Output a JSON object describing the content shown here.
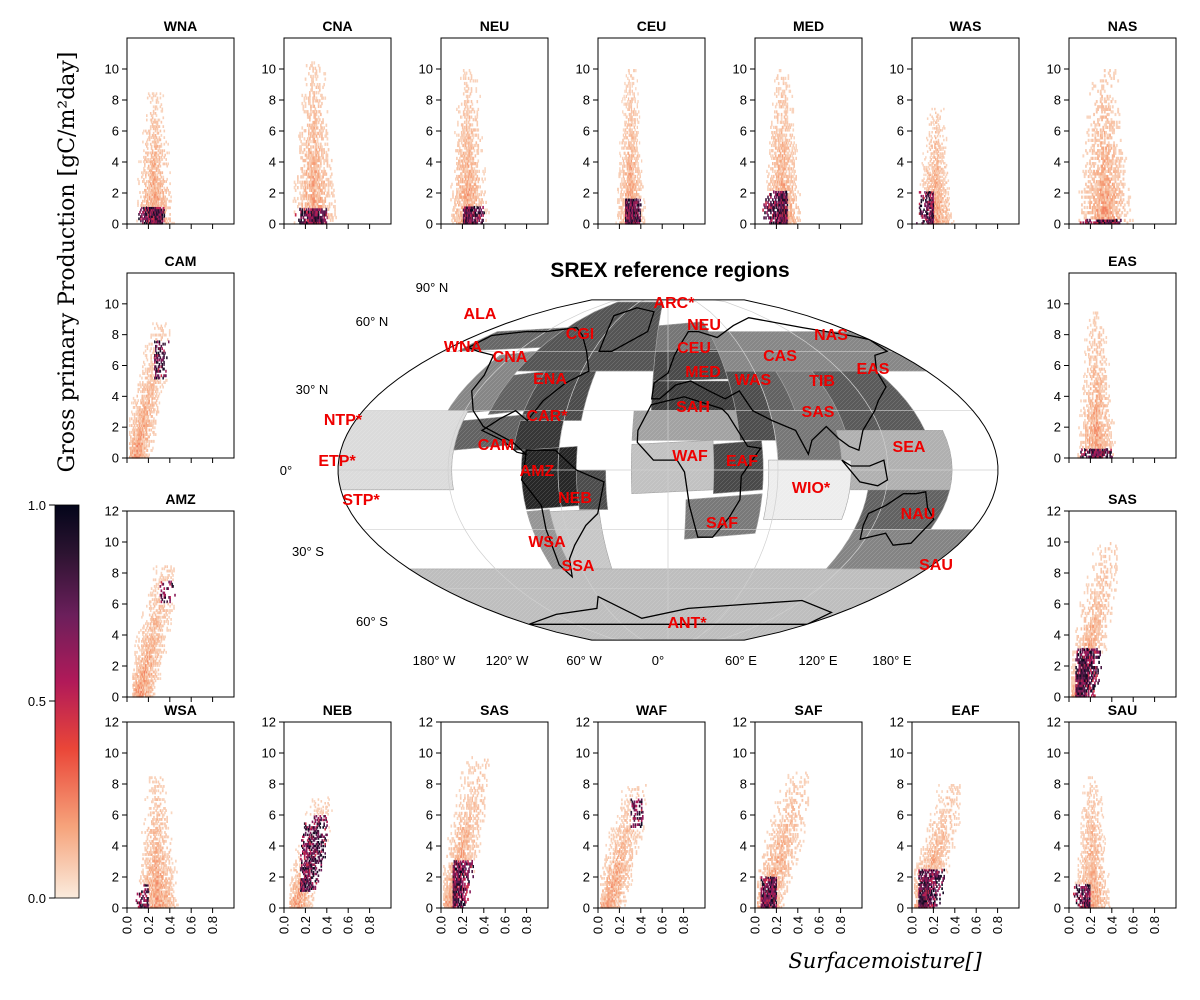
{
  "figure": {
    "ylabel": "Gross primary Production [gC/m²day]",
    "xlabel": "Surfacemoisture[]",
    "colorbar": {
      "ticks": [
        "0.0",
        "0.5",
        "1.0"
      ],
      "colors": [
        "#faebdd",
        "#f6a47c",
        "#ea4638",
        "#b11a59",
        "#6b1f5b",
        "#2b1330",
        "#03051a"
      ]
    }
  },
  "chart_data": [
    {
      "type": "heatmap",
      "title": "WNA",
      "ylim": [
        0,
        12
      ],
      "yticks": [
        0,
        2,
        4,
        6,
        8,
        10
      ],
      "xlim": [
        0,
        1
      ],
      "xticks": [
        0.0,
        0.2,
        0.4,
        0.6,
        0.8
      ],
      "xticklabels": [
        "0.0",
        "0.2",
        "0.4",
        "0.6",
        "0.8"
      ],
      "density": {
        "x_range": [
          0.05,
          0.45
        ],
        "y_range": [
          0,
          8.5
        ],
        "y_peak": 8.5,
        "core": [
          0.1,
          0.35,
          0,
          1
        ],
        "trend": "vertical"
      }
    },
    {
      "type": "heatmap",
      "title": "CNA",
      "ylim": [
        0,
        12
      ],
      "yticks": [
        0,
        2,
        4,
        6,
        8,
        10
      ],
      "xlim": [
        0,
        1
      ],
      "xticks": [
        0.0,
        0.2,
        0.4,
        0.6,
        0.8
      ],
      "xticklabels": [
        "0.0",
        "0.2",
        "0.4",
        "0.6",
        "0.8"
      ],
      "density": {
        "x_range": [
          0.05,
          0.5
        ],
        "y_range": [
          0,
          10.5
        ],
        "y_peak": 10.5,
        "core": [
          0.1,
          0.4,
          0,
          1
        ],
        "trend": "vertical"
      }
    },
    {
      "type": "heatmap",
      "title": "NEU",
      "ylim": [
        0,
        12
      ],
      "yticks": [
        0,
        2,
        4,
        6,
        8,
        10
      ],
      "xlim": [
        0,
        1
      ],
      "xticks": [
        0.0,
        0.2,
        0.4,
        0.6,
        0.8
      ],
      "xticklabels": [
        "0.0",
        "0.2",
        "0.4",
        "0.6",
        "0.8"
      ],
      "density": {
        "x_range": [
          0.05,
          0.45
        ],
        "y_range": [
          0,
          10
        ],
        "y_peak": 10,
        "core": [
          0.2,
          0.4,
          0,
          1
        ],
        "trend": "vertical"
      }
    },
    {
      "type": "heatmap",
      "title": "CEU",
      "ylim": [
        0,
        12
      ],
      "yticks": [
        0,
        2,
        4,
        6,
        8,
        10
      ],
      "xlim": [
        0,
        1
      ],
      "xticks": [
        0.0,
        0.2,
        0.4,
        0.6,
        0.8
      ],
      "xticklabels": [
        "0.0",
        "0.2",
        "0.4",
        "0.6",
        "0.8"
      ],
      "density": {
        "x_range": [
          0.15,
          0.45
        ],
        "y_range": [
          0,
          10
        ],
        "y_peak": 10,
        "core": [
          0.25,
          0.4,
          0,
          1.5
        ],
        "trend": "vertical"
      }
    },
    {
      "type": "heatmap",
      "title": "MED",
      "ylim": [
        0,
        12
      ],
      "yticks": [
        0,
        2,
        4,
        6,
        8,
        10
      ],
      "xlim": [
        0,
        1
      ],
      "xticks": [
        0.0,
        0.2,
        0.4,
        0.6,
        0.8
      ],
      "xticklabels": [
        "0.0",
        "0.2",
        "0.4",
        "0.6",
        "0.8"
      ],
      "density": {
        "x_range": [
          0.05,
          0.45
        ],
        "y_range": [
          0,
          10
        ],
        "y_peak": 10,
        "core": [
          0.05,
          0.3,
          0,
          2
        ],
        "trend": "vertical"
      }
    },
    {
      "type": "heatmap",
      "title": "WAS",
      "ylim": [
        0,
        12
      ],
      "yticks": [
        0,
        2,
        4,
        6,
        8,
        10
      ],
      "xlim": [
        0,
        1
      ],
      "xticks": [
        0.0,
        0.2,
        0.4,
        0.6,
        0.8
      ],
      "xticklabels": [
        "0.0",
        "0.2",
        "0.4",
        "0.6",
        "0.8"
      ],
      "density": {
        "x_range": [
          0.03,
          0.4
        ],
        "y_range": [
          0,
          7.5
        ],
        "y_peak": 7.5,
        "core": [
          0.03,
          0.2,
          0,
          2
        ],
        "trend": "vertical"
      }
    },
    {
      "type": "heatmap",
      "title": "NAS",
      "ylim": [
        0,
        12
      ],
      "yticks": [
        0,
        2,
        4,
        6,
        8,
        10
      ],
      "xlim": [
        0,
        1
      ],
      "xticks": [
        0.0,
        0.2,
        0.4,
        0.6,
        0.8
      ],
      "xticklabels": [
        "0.0",
        "0.2",
        "0.4",
        "0.6",
        "0.8"
      ],
      "density": {
        "x_range": [
          0.05,
          0.6
        ],
        "y_range": [
          0,
          10
        ],
        "y_peak": 10,
        "core": [
          0.1,
          0.5,
          0,
          0.3
        ],
        "trend": "vertical"
      }
    },
    {
      "type": "heatmap",
      "title": "CAM",
      "ylim": [
        0,
        12
      ],
      "yticks": [
        0,
        2,
        4,
        6,
        8,
        10
      ],
      "xlim": [
        0,
        1
      ],
      "xticks": [
        0.0,
        0.2,
        0.4,
        0.6,
        0.8
      ],
      "xticklabels": [
        "0.0",
        "0.2",
        "0.4",
        "0.6",
        "0.8"
      ],
      "density": {
        "x_range": [
          0.02,
          0.4
        ],
        "y_range": [
          0,
          8.8
        ],
        "y_peak": 8.8,
        "core": [
          0.25,
          0.4,
          5,
          7.5
        ],
        "trend": "diagonal"
      }
    },
    {
      "type": "heatmap",
      "title": "EAS",
      "ylim": [
        0,
        12
      ],
      "yticks": [
        0,
        2,
        4,
        6,
        8,
        10
      ],
      "xlim": [
        0,
        1
      ],
      "xticks": [
        0.0,
        0.2,
        0.4,
        0.6,
        0.8
      ],
      "xticklabels": [
        "0.0",
        "0.2",
        "0.4",
        "0.6",
        "0.8"
      ],
      "density": {
        "x_range": [
          0.05,
          0.45
        ],
        "y_range": [
          0,
          9.5
        ],
        "y_peak": 9.5,
        "core": [
          0.1,
          0.4,
          0,
          0.5
        ],
        "trend": "vertical"
      }
    },
    {
      "type": "heatmap",
      "title": "AMZ",
      "ylim": [
        0,
        12
      ],
      "yticks": [
        0,
        2,
        4,
        6,
        8,
        10,
        12
      ],
      "xlim": [
        0,
        1
      ],
      "xticks": [
        0.0,
        0.2,
        0.4,
        0.6,
        0.8
      ],
      "xticklabels": [
        "0.0",
        "0.2",
        "0.4",
        "0.6",
        "0.8"
      ],
      "density": {
        "x_range": [
          0.05,
          0.45
        ],
        "y_range": [
          0,
          8.5
        ],
        "y_peak": 8.5,
        "core": [
          0.3,
          0.45,
          6,
          7.5
        ],
        "trend": "diagonal"
      }
    },
    {
      "type": "heatmap",
      "title": "SAS",
      "ylim": [
        0,
        12
      ],
      "yticks": [
        0,
        2,
        4,
        6,
        8,
        10,
        12
      ],
      "xlim": [
        0,
        1
      ],
      "xticks": [
        0.0,
        0.2,
        0.4,
        0.6,
        0.8
      ],
      "xticklabels": [
        "0.0",
        "0.2",
        "0.4",
        "0.6",
        "0.8"
      ],
      "density": {
        "x_range": [
          0.02,
          0.45
        ],
        "y_range": [
          0,
          10
        ],
        "y_peak": 10,
        "core": [
          0.05,
          0.3,
          0,
          3
        ],
        "trend": "diagonal"
      }
    },
    {
      "type": "heatmap",
      "title": "WSA",
      "ylim": [
        0,
        12
      ],
      "yticks": [
        0,
        2,
        4,
        6,
        8,
        10,
        12
      ],
      "xlim": [
        0,
        1
      ],
      "xticks": [
        0.0,
        0.2,
        0.4,
        0.6,
        0.8
      ],
      "xticklabels": [
        "0.0",
        "0.2",
        "0.4",
        "0.6",
        "0.8"
      ],
      "density": {
        "x_range": [
          0.05,
          0.5
        ],
        "y_range": [
          0,
          8.5
        ],
        "y_peak": 8.5,
        "core": [
          0.05,
          0.2,
          0,
          1.5
        ],
        "trend": "vertical"
      }
    },
    {
      "type": "heatmap",
      "title": "NEB",
      "ylim": [
        0,
        12
      ],
      "yticks": [
        0,
        2,
        4,
        6,
        8,
        10,
        12
      ],
      "xlim": [
        0,
        1
      ],
      "xticks": [
        0.0,
        0.2,
        0.4,
        0.6,
        0.8
      ],
      "xticklabels": [
        "0.0",
        "0.2",
        "0.4",
        "0.6",
        "0.8"
      ],
      "density": {
        "x_range": [
          0.05,
          0.45
        ],
        "y_range": [
          0,
          7.2
        ],
        "y_peak": 7.2,
        "core": [
          0.15,
          0.4,
          1,
          6
        ],
        "trend": "diagonal"
      }
    },
    {
      "type": "heatmap",
      "title": "SAS",
      "ylim": [
        0,
        12
      ],
      "yticks": [
        0,
        2,
        4,
        6,
        8,
        10,
        12
      ],
      "xlim": [
        0,
        1
      ],
      "xticks": [
        0.0,
        0.2,
        0.4,
        0.6,
        0.8
      ],
      "xticklabels": [
        "0.0",
        "0.2",
        "0.4",
        "0.6",
        "0.8"
      ],
      "density": {
        "x_range": [
          0.02,
          0.45
        ],
        "y_range": [
          0,
          9.8
        ],
        "y_peak": 9.8,
        "core": [
          0.1,
          0.3,
          0,
          3
        ],
        "trend": "diagonal"
      }
    },
    {
      "type": "heatmap",
      "title": "WAF",
      "ylim": [
        0,
        12
      ],
      "yticks": [
        0,
        2,
        4,
        6,
        8,
        10,
        12
      ],
      "xlim": [
        0,
        1
      ],
      "xticks": [
        0.0,
        0.2,
        0.4,
        0.6,
        0.8
      ],
      "xticklabels": [
        "0.0",
        "0.2",
        "0.4",
        "0.6",
        "0.8"
      ],
      "density": {
        "x_range": [
          0.02,
          0.45
        ],
        "y_range": [
          0,
          8
        ],
        "y_peak": 8,
        "core": [
          0.3,
          0.42,
          5,
          7
        ],
        "trend": "diagonal"
      }
    },
    {
      "type": "heatmap",
      "title": "SAF",
      "ylim": [
        0,
        12
      ],
      "yticks": [
        0,
        2,
        4,
        6,
        8,
        10,
        12
      ],
      "xlim": [
        0,
        1
      ],
      "xticks": [
        0.0,
        0.2,
        0.4,
        0.6,
        0.8
      ],
      "xticklabels": [
        "0.0",
        "0.2",
        "0.4",
        "0.6",
        "0.8"
      ],
      "density": {
        "x_range": [
          0.02,
          0.5
        ],
        "y_range": [
          0,
          8.8
        ],
        "y_peak": 8.8,
        "core": [
          0.05,
          0.2,
          0,
          2
        ],
        "trend": "diagonal"
      }
    },
    {
      "type": "heatmap",
      "title": "EAF",
      "ylim": [
        0,
        12
      ],
      "yticks": [
        0,
        2,
        4,
        6,
        8,
        10,
        12
      ],
      "xlim": [
        0,
        1
      ],
      "xticks": [
        0.0,
        0.2,
        0.4,
        0.6,
        0.8
      ],
      "xticklabels": [
        "0.0",
        "0.2",
        "0.4",
        "0.6",
        "0.8"
      ],
      "density": {
        "x_range": [
          0.02,
          0.45
        ],
        "y_range": [
          0,
          8
        ],
        "y_peak": 8,
        "core": [
          0.05,
          0.3,
          0,
          2.5
        ],
        "trend": "diagonal"
      }
    },
    {
      "type": "heatmap",
      "title": "SAU",
      "ylim": [
        0,
        12
      ],
      "yticks": [
        0,
        2,
        4,
        6,
        8,
        10,
        12
      ],
      "xlim": [
        0,
        1
      ],
      "xticks": [
        0.0,
        0.2,
        0.4,
        0.6,
        0.8
      ],
      "xticklabels": [
        "0.0",
        "0.2",
        "0.4",
        "0.6",
        "0.8"
      ],
      "density": {
        "x_range": [
          0.02,
          0.4
        ],
        "y_range": [
          0,
          8.5
        ],
        "y_peak": 8.5,
        "core": [
          0.03,
          0.2,
          0,
          1.5
        ],
        "trend": "vertical"
      }
    }
  ],
  "map": {
    "title": "SREX reference regions",
    "lat_labels": [
      "90° N",
      "60° N",
      "30° N",
      "0°",
      "30° S",
      "60° S"
    ],
    "lon_labels": [
      "180° W",
      "120° W",
      "60° W",
      "0°",
      "60° E",
      "120° E",
      "180° E"
    ],
    "region_labels": [
      "ALA",
      "ARC*",
      "NEU",
      "CGI",
      "NAS",
      "WNA",
      "CNA",
      "CEU",
      "CAS",
      "MED",
      "EAS",
      "ENA",
      "WAS",
      "TIB",
      "SAH",
      "SAS",
      "NTP*",
      "CAR*",
      "CAM",
      "SEA",
      "ETP*",
      "WAF",
      "EAF",
      "AMZ",
      "WIO*",
      "STP*",
      "NEB",
      "NAU",
      "SAF",
      "WSA",
      "SAU",
      "SSA",
      "ANT*"
    ]
  }
}
